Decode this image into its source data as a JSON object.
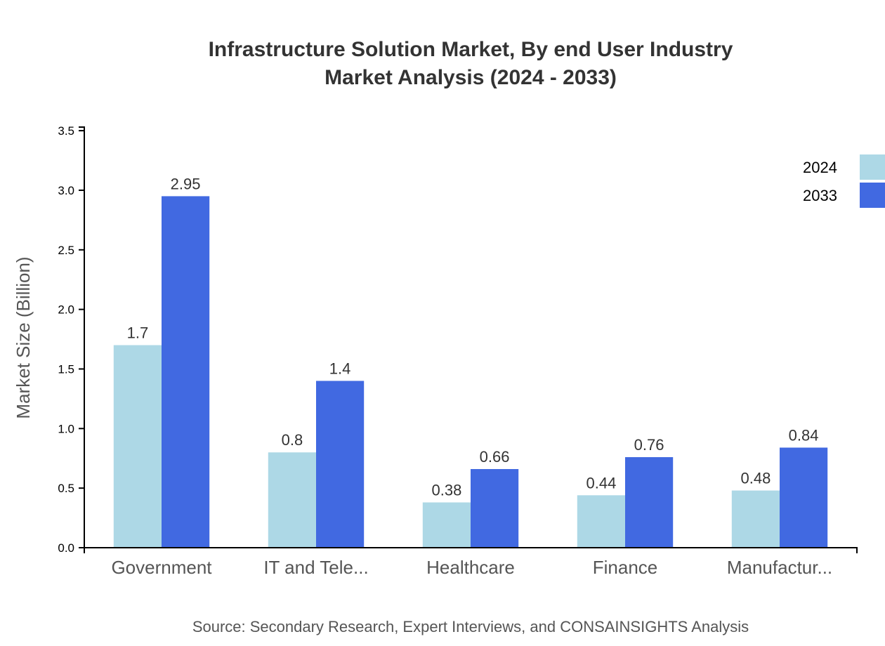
{
  "chart_data": {
    "type": "bar",
    "title": "Infrastructure Solution Market, By end User Industry",
    "subtitle": "Market Analysis (2024 - 2033)",
    "xlabel": "",
    "ylabel": "Market Size (Billion)",
    "ylim": [
      0,
      3.53
    ],
    "yticks": [
      "0.0",
      "0.5",
      "1.0",
      "1.5",
      "2.0",
      "2.5",
      "3.0",
      "3.5"
    ],
    "categories": [
      "Government",
      "IT and Tele...",
      "Healthcare",
      "Finance",
      "Manufactur..."
    ],
    "series": [
      {
        "name": "2024",
        "color": "#ADD8E6",
        "values": [
          1.7,
          0.8,
          0.38,
          0.44,
          0.48
        ],
        "labels": [
          "1.7",
          "0.8",
          "0.38",
          "0.44",
          "0.48"
        ]
      },
      {
        "name": "2033",
        "color": "#4169E1",
        "values": [
          2.95,
          1.4,
          0.66,
          0.76,
          0.84
        ],
        "labels": [
          "2.95",
          "1.4",
          "0.66",
          "0.76",
          "0.84"
        ]
      }
    ],
    "grid": false,
    "legend": "top-right",
    "source": "Source: Secondary Research, Expert Interviews, and CONSAINSIGHTS Analysis"
  }
}
